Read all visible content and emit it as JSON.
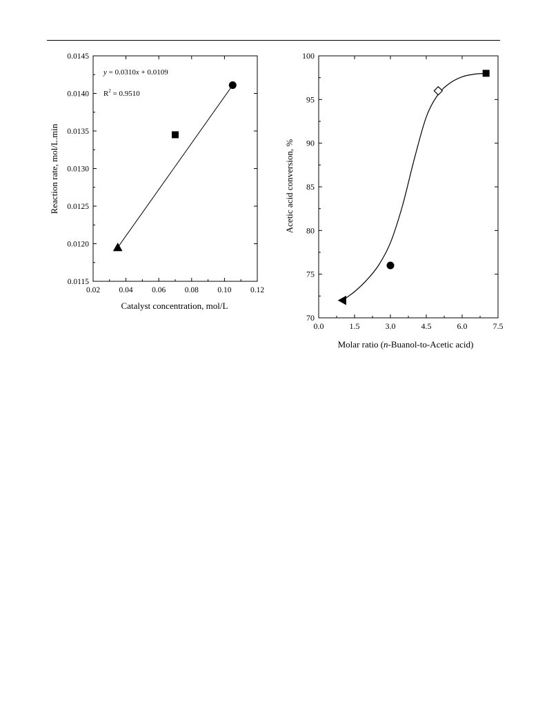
{
  "colors": {
    "ink": "#000000",
    "background": "#ffffff"
  },
  "chart_data": [
    {
      "type": "scatter",
      "xlabel": "Catalyst concentration, mol/L",
      "ylabel": "Reaction rate, mol/L.min",
      "xlim": [
        0.02,
        0.12
      ],
      "ylim": [
        0.0115,
        0.0145
      ],
      "xticks": [
        "0.02",
        "0.04",
        "0.06",
        "0.08",
        "0.10",
        "0.12"
      ],
      "yticks": [
        "0.0115",
        "0.0120",
        "0.0125",
        "0.0130",
        "0.0135",
        "0.0140",
        "0.0145"
      ],
      "points": [
        {
          "x": 0.035,
          "y": 0.01195,
          "marker": "triangle-up",
          "fill": "filled"
        },
        {
          "x": 0.07,
          "y": 0.01345,
          "marker": "square",
          "fill": "filled"
        },
        {
          "x": 0.105,
          "y": 0.01411,
          "marker": "circle",
          "fill": "filled"
        }
      ],
      "fit_line": {
        "x": [
          0.035,
          0.105
        ],
        "y": [
          0.01195,
          0.01411
        ]
      },
      "annotations": {
        "equation": {
          "y": "y",
          "rest": " = 0.0310",
          "x": "x",
          "tail": " + 0.0109"
        },
        "r2": {
          "base": "R",
          "sup": "2",
          "rest": " = 0.9510"
        }
      },
      "grid": false
    },
    {
      "type": "scatter",
      "xlabel": {
        "pre": "Molar ratio (",
        "italic": "n",
        "post": "-Buanol-to-Acetic acid)"
      },
      "ylabel": "Acetic acid conversion, %",
      "xlim": [
        0.0,
        7.5
      ],
      "ylim": [
        70,
        100
      ],
      "xticks": [
        "0.0",
        "1.5",
        "3.0",
        "4.5",
        "6.0",
        "7.5"
      ],
      "yticks": [
        "70",
        "75",
        "80",
        "85",
        "90",
        "95",
        "100"
      ],
      "points": [
        {
          "x": 1.0,
          "y": 72,
          "marker": "triangle-left",
          "fill": "filled"
        },
        {
          "x": 3.0,
          "y": 76,
          "marker": "circle",
          "fill": "filled"
        },
        {
          "x": 5.0,
          "y": 96,
          "marker": "diamond",
          "fill": "open"
        },
        {
          "x": 7.0,
          "y": 98,
          "marker": "square",
          "fill": "filled"
        }
      ],
      "fit_curve": {
        "x": [
          1.0,
          1.5,
          2.0,
          2.5,
          3.0,
          3.5,
          4.0,
          4.5,
          5.0,
          5.5,
          6.0,
          6.5,
          7.0
        ],
        "y": [
          72.0,
          73.0,
          74.3,
          76.0,
          78.6,
          82.8,
          88.2,
          93.0,
          95.6,
          96.9,
          97.6,
          97.9,
          98.0
        ]
      },
      "grid": false
    }
  ]
}
